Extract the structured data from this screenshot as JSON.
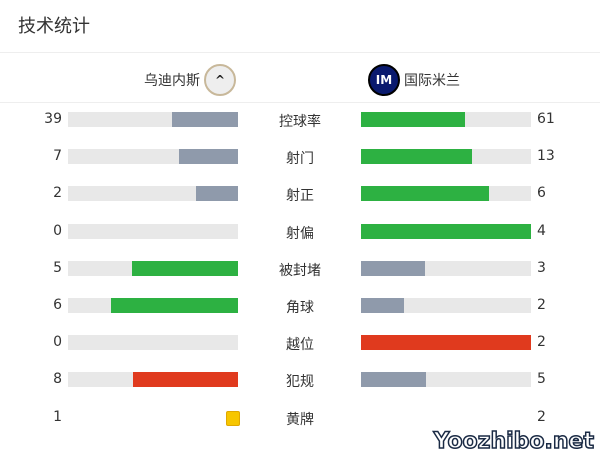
{
  "title": "技术统计",
  "home": {
    "name": "乌迪内斯",
    "logo": "udinese-crest-icon"
  },
  "away": {
    "name": "国际米兰",
    "logo": "inter-crest-icon"
  },
  "colors": {
    "grey": "#8f9aab",
    "green": "#2db142",
    "red": "#e03a1e",
    "track": "#e8e8e8",
    "yellow": "#f7c600"
  },
  "stats": [
    {
      "label": "控球率",
      "home": "39",
      "away": "61",
      "home_color": "grey",
      "away_color": "green"
    },
    {
      "label": "射门",
      "home": "7",
      "away": "13",
      "home_color": "grey",
      "away_color": "green"
    },
    {
      "label": "射正",
      "home": "2",
      "away": "6",
      "home_color": "grey",
      "away_color": "green"
    },
    {
      "label": "射偏",
      "home": "0",
      "away": "4",
      "home_color": "grey",
      "away_color": "green"
    },
    {
      "label": "被封堵",
      "home": "5",
      "away": "3",
      "home_color": "green",
      "away_color": "grey"
    },
    {
      "label": "角球",
      "home": "6",
      "away": "2",
      "home_color": "green",
      "away_color": "grey"
    },
    {
      "label": "越位",
      "home": "0",
      "away": "2",
      "home_color": "grey",
      "away_color": "red"
    },
    {
      "label": "犯规",
      "home": "8",
      "away": "5",
      "home_color": "red",
      "away_color": "grey"
    },
    {
      "label": "黄牌",
      "home": "1",
      "away": "2",
      "type": "card"
    }
  ],
  "watermark": "Yoozhibo.net"
}
